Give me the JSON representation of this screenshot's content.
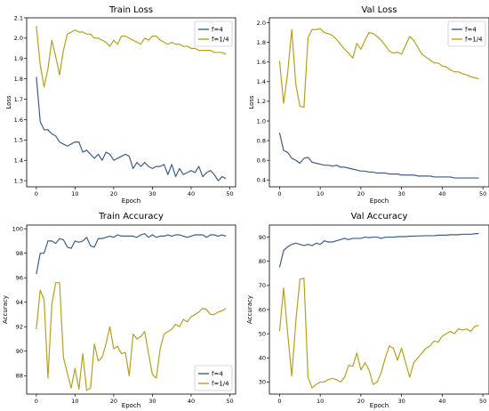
{
  "colors": {
    "f4": "#3a5d8f",
    "f14": "#b8a01a"
  },
  "chart_data": [
    {
      "type": "line",
      "title": "Train Loss",
      "xlabel": "Epoch",
      "ylabel": "Loss",
      "xlim": [
        -2.5,
        51.5
      ],
      "ylim": [
        1.27,
        2.1
      ],
      "xticks": [
        0,
        10,
        20,
        30,
        40,
        50
      ],
      "xtick_labels": [
        "0",
        "10",
        "20",
        "30",
        "40",
        "50"
      ],
      "yticks": [
        1.3,
        1.4,
        1.5,
        1.6,
        1.7,
        1.8,
        1.9,
        2.0,
        2.1
      ],
      "ytick_labels": [
        "1.3",
        "1.4",
        "1.5",
        "1.6",
        "1.7",
        "1.8",
        "1.9",
        "2.0",
        "2.1"
      ],
      "legend": "top-right",
      "series": [
        {
          "name": "f=4",
          "color_key": "f4",
          "values": [
            1.81,
            1.59,
            1.55,
            1.55,
            1.53,
            1.52,
            1.49,
            1.48,
            1.47,
            1.48,
            1.49,
            1.49,
            1.44,
            1.45,
            1.43,
            1.41,
            1.43,
            1.4,
            1.44,
            1.43,
            1.4,
            1.41,
            1.42,
            1.43,
            1.42,
            1.36,
            1.39,
            1.37,
            1.39,
            1.37,
            1.36,
            1.37,
            1.37,
            1.38,
            1.33,
            1.38,
            1.32,
            1.36,
            1.33,
            1.34,
            1.35,
            1.34,
            1.37,
            1.32,
            1.34,
            1.35,
            1.33,
            1.3,
            1.32,
            1.31
          ]
        },
        {
          "name": "f=1/4",
          "color_key": "f14",
          "values": [
            2.06,
            1.87,
            1.76,
            1.85,
            1.99,
            1.91,
            1.82,
            1.94,
            2.02,
            2.03,
            2.04,
            2.03,
            2.03,
            2.02,
            2.02,
            2.0,
            2.0,
            1.99,
            1.98,
            1.96,
            1.99,
            1.97,
            2.01,
            2.01,
            2.0,
            1.99,
            1.98,
            1.97,
            2.0,
            1.99,
            2.01,
            2.01,
            1.99,
            1.98,
            1.97,
            1.98,
            1.97,
            1.97,
            1.96,
            1.96,
            1.95,
            1.95,
            1.94,
            1.94,
            1.94,
            1.94,
            1.93,
            1.93,
            1.93,
            1.92
          ]
        }
      ]
    },
    {
      "type": "line",
      "title": "Val Loss",
      "xlabel": "Epoch",
      "ylabel": "Loss",
      "xlim": [
        -2.5,
        51.5
      ],
      "ylim": [
        0.33,
        2.05
      ],
      "xticks": [
        0,
        10,
        20,
        30,
        40,
        50
      ],
      "xtick_labels": [
        "0",
        "10",
        "20",
        "30",
        "40",
        "50"
      ],
      "yticks": [
        0.4,
        0.6,
        0.8,
        1.0,
        1.2,
        1.4,
        1.6,
        1.8,
        2.0
      ],
      "ytick_labels": [
        "0.4",
        "0.6",
        "0.8",
        "1.0",
        "1.2",
        "1.4",
        "1.6",
        "1.8",
        "2.0"
      ],
      "legend": "top-right",
      "series": [
        {
          "name": "f=4",
          "color_key": "f4",
          "values": [
            0.88,
            0.7,
            0.68,
            0.62,
            0.6,
            0.57,
            0.62,
            0.63,
            0.58,
            0.57,
            0.56,
            0.55,
            0.55,
            0.54,
            0.55,
            0.53,
            0.53,
            0.52,
            0.51,
            0.5,
            0.49,
            0.49,
            0.48,
            0.48,
            0.47,
            0.47,
            0.47,
            0.46,
            0.46,
            0.46,
            0.45,
            0.45,
            0.45,
            0.45,
            0.44,
            0.44,
            0.44,
            0.44,
            0.43,
            0.43,
            0.43,
            0.43,
            0.43,
            0.42,
            0.42,
            0.42,
            0.42,
            0.42,
            0.42,
            0.42
          ]
        },
        {
          "name": "f=1/4",
          "color_key": "f14",
          "values": [
            1.61,
            1.18,
            1.49,
            1.93,
            1.37,
            1.15,
            1.14,
            1.85,
            1.93,
            1.93,
            1.94,
            1.9,
            1.89,
            1.87,
            1.83,
            1.78,
            1.73,
            1.69,
            1.64,
            1.79,
            1.73,
            1.82,
            1.9,
            1.89,
            1.86,
            1.82,
            1.77,
            1.71,
            1.69,
            1.7,
            1.68,
            1.77,
            1.86,
            1.82,
            1.75,
            1.68,
            1.65,
            1.62,
            1.59,
            1.59,
            1.56,
            1.55,
            1.52,
            1.5,
            1.5,
            1.48,
            1.47,
            1.45,
            1.44,
            1.43
          ]
        }
      ]
    },
    {
      "type": "line",
      "title": "Train Accuracy",
      "xlabel": "Epoch",
      "ylabel": "Accuracy",
      "xlim": [
        -2.5,
        51.5
      ],
      "ylim": [
        86.5,
        100.3
      ],
      "xticks": [
        0,
        10,
        20,
        30,
        40,
        50
      ],
      "xtick_labels": [
        "0",
        "10",
        "20",
        "30",
        "40",
        "50"
      ],
      "yticks": [
        88,
        90,
        92,
        94,
        96,
        98,
        100
      ],
      "ytick_labels": [
        "88",
        "90",
        "92",
        "94",
        "96",
        "98",
        "100"
      ],
      "legend": "bottom-right",
      "series": [
        {
          "name": "f=4",
          "color_key": "f4",
          "values": [
            96.3,
            98.0,
            98.0,
            99.0,
            99.0,
            98.8,
            99.2,
            99.1,
            98.5,
            98.4,
            99.0,
            98.9,
            99.0,
            99.3,
            98.6,
            98.5,
            99.2,
            99.2,
            99.3,
            99.4,
            99.3,
            99.5,
            99.4,
            99.4,
            99.4,
            99.4,
            99.3,
            99.5,
            99.6,
            99.3,
            99.5,
            99.3,
            99.4,
            99.4,
            99.5,
            99.4,
            99.5,
            99.5,
            99.4,
            99.3,
            99.4,
            99.5,
            99.5,
            99.5,
            99.3,
            99.5,
            99.5,
            99.4,
            99.5,
            99.4
          ]
        },
        {
          "name": "f=1/4",
          "color_key": "f14",
          "values": [
            91.8,
            95.0,
            94.2,
            87.8,
            93.8,
            95.6,
            95.6,
            89.5,
            88.2,
            87.0,
            88.6,
            86.9,
            89.8,
            86.8,
            87.0,
            90.6,
            89.2,
            89.5,
            90.6,
            92.0,
            90.2,
            90.4,
            89.8,
            89.9,
            88.0,
            91.4,
            91.0,
            91.2,
            91.6,
            89.8,
            88.1,
            87.8,
            90.2,
            91.4,
            91.6,
            91.8,
            92.2,
            92.0,
            92.6,
            92.4,
            92.8,
            93.0,
            93.2,
            93.5,
            93.4,
            93.0,
            93.0,
            93.2,
            93.3,
            93.5
          ]
        }
      ]
    },
    {
      "type": "line",
      "title": "Val Accuracy",
      "xlabel": "Epoch",
      "ylabel": "Accuracy",
      "xlim": [
        -2.5,
        51.5
      ],
      "ylim": [
        25,
        95
      ],
      "xticks": [
        0,
        10,
        20,
        30,
        40,
        50
      ],
      "xtick_labels": [
        "0",
        "10",
        "20",
        "30",
        "40",
        "50"
      ],
      "yticks": [
        30,
        40,
        50,
        60,
        70,
        80,
        90
      ],
      "ytick_labels": [
        "30",
        "40",
        "50",
        "60",
        "70",
        "80",
        "90"
      ],
      "legend": "none",
      "series": [
        {
          "name": "f=4",
          "color_key": "f4",
          "values": [
            77.5,
            84.5,
            86.0,
            87.0,
            87.5,
            87.0,
            86.5,
            87.0,
            86.5,
            87.5,
            87.0,
            88.5,
            88.0,
            88.0,
            88.5,
            89.0,
            89.5,
            89.0,
            89.5,
            89.5,
            89.5,
            90.0,
            89.8,
            90.0,
            90.0,
            89.5,
            90.0,
            90.0,
            90.0,
            90.2,
            90.2,
            90.2,
            90.4,
            90.4,
            90.5,
            90.5,
            90.6,
            90.6,
            90.6,
            90.8,
            90.8,
            90.8,
            91.0,
            91.0,
            91.0,
            91.2,
            91.2,
            91.2,
            91.4,
            91.5
          ]
        },
        {
          "name": "f=1/4",
          "color_key": "f14",
          "values": [
            51.0,
            69.0,
            50.0,
            32.5,
            55.0,
            72.5,
            73.0,
            32.0,
            27.5,
            29.0,
            30.0,
            30.0,
            31.0,
            31.5,
            31.0,
            30.0,
            32.0,
            37.0,
            36.5,
            42.0,
            35.0,
            38.0,
            35.0,
            29.0,
            30.0,
            34.0,
            40.0,
            45.0,
            44.0,
            39.0,
            44.0,
            38.0,
            32.0,
            38.0,
            40.0,
            42.0,
            44.0,
            45.0,
            47.0,
            46.5,
            49.0,
            50.0,
            51.0,
            50.0,
            52.0,
            51.5,
            52.0,
            51.0,
            53.0,
            53.5
          ]
        }
      ]
    }
  ]
}
